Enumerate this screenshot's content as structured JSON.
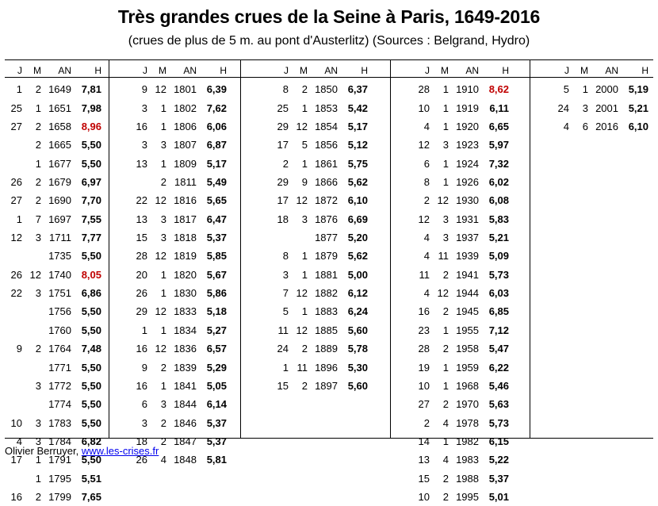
{
  "title": "Très grandes crues de la Seine à Paris, 1649-2016",
  "subtitle": "(crues de plus de 5 m. au pont d'Austerlitz) (Sources : Belgrand, Hydro)",
  "header": {
    "j": "J",
    "m": "M",
    "an": "AN",
    "h": "H"
  },
  "highlight_color": "#c00000",
  "groups": [
    [
      {
        "j": "1",
        "m": "2",
        "an": "1649",
        "h": "7,81"
      },
      {
        "j": "25",
        "m": "1",
        "an": "1651",
        "h": "7,98"
      },
      {
        "j": "27",
        "m": "2",
        "an": "1658",
        "h": "8,96",
        "red": true
      },
      {
        "j": "",
        "m": "2",
        "an": "1665",
        "h": "5,50"
      },
      {
        "j": "",
        "m": "1",
        "an": "1677",
        "h": "5,50"
      },
      {
        "j": "26",
        "m": "2",
        "an": "1679",
        "h": "6,97"
      },
      {
        "j": "27",
        "m": "2",
        "an": "1690",
        "h": "7,70"
      },
      {
        "j": "1",
        "m": "7",
        "an": "1697",
        "h": "7,55"
      },
      {
        "j": "12",
        "m": "3",
        "an": "1711",
        "h": "7,77"
      },
      {
        "j": "",
        "m": "",
        "an": "1735",
        "h": "5,50"
      },
      {
        "j": "26",
        "m": "12",
        "an": "1740",
        "h": "8,05",
        "red": true
      },
      {
        "j": "22",
        "m": "3",
        "an": "1751",
        "h": "6,86"
      },
      {
        "j": "",
        "m": "",
        "an": "1756",
        "h": "5,50"
      },
      {
        "j": "",
        "m": "",
        "an": "1760",
        "h": "5,50"
      },
      {
        "j": "9",
        "m": "2",
        "an": "1764",
        "h": "7,48"
      },
      {
        "j": "",
        "m": "",
        "an": "1771",
        "h": "5,50"
      },
      {
        "j": "",
        "m": "3",
        "an": "1772",
        "h": "5,50"
      },
      {
        "j": "",
        "m": "",
        "an": "1774",
        "h": "5,50"
      },
      {
        "j": "10",
        "m": "3",
        "an": "1783",
        "h": "5,50"
      },
      {
        "j": "4",
        "m": "3",
        "an": "1784",
        "h": "6,82"
      },
      {
        "j": "17",
        "m": "1",
        "an": "1791",
        "h": "5,50"
      },
      {
        "j": "",
        "m": "1",
        "an": "1795",
        "h": "5,51"
      },
      {
        "j": "16",
        "m": "2",
        "an": "1799",
        "h": "7,65"
      }
    ],
    [
      {
        "j": "9",
        "m": "12",
        "an": "1801",
        "h": "6,39"
      },
      {
        "j": "3",
        "m": "1",
        "an": "1802",
        "h": "7,62"
      },
      {
        "j": "16",
        "m": "1",
        "an": "1806",
        "h": "6,06"
      },
      {
        "j": "3",
        "m": "3",
        "an": "1807",
        "h": "6,87"
      },
      {
        "j": "13",
        "m": "1",
        "an": "1809",
        "h": "5,17"
      },
      {
        "j": "",
        "m": "2",
        "an": "1811",
        "h": "5,49"
      },
      {
        "j": "22",
        "m": "12",
        "an": "1816",
        "h": "5,65"
      },
      {
        "j": "13",
        "m": "3",
        "an": "1817",
        "h": "6,47"
      },
      {
        "j": "15",
        "m": "3",
        "an": "1818",
        "h": "5,37"
      },
      {
        "j": "28",
        "m": "12",
        "an": "1819",
        "h": "5,85"
      },
      {
        "j": "20",
        "m": "1",
        "an": "1820",
        "h": "5,67"
      },
      {
        "j": "26",
        "m": "1",
        "an": "1830",
        "h": "5,86"
      },
      {
        "j": "29",
        "m": "12",
        "an": "1833",
        "h": "5,18"
      },
      {
        "j": "1",
        "m": "1",
        "an": "1834",
        "h": "5,27"
      },
      {
        "j": "16",
        "m": "12",
        "an": "1836",
        "h": "6,57"
      },
      {
        "j": "9",
        "m": "2",
        "an": "1839",
        "h": "5,29"
      },
      {
        "j": "16",
        "m": "1",
        "an": "1841",
        "h": "5,05"
      },
      {
        "j": "6",
        "m": "3",
        "an": "1844",
        "h": "6,14"
      },
      {
        "j": "3",
        "m": "2",
        "an": "1846",
        "h": "5,37"
      },
      {
        "j": "18",
        "m": "2",
        "an": "1847",
        "h": "5,37"
      },
      {
        "j": "26",
        "m": "4",
        "an": "1848",
        "h": "5,81"
      }
    ],
    [
      {
        "j": "8",
        "m": "2",
        "an": "1850",
        "h": "6,37"
      },
      {
        "j": "25",
        "m": "1",
        "an": "1853",
        "h": "5,42"
      },
      {
        "j": "29",
        "m": "12",
        "an": "1854",
        "h": "5,17"
      },
      {
        "j": "17",
        "m": "5",
        "an": "1856",
        "h": "5,12"
      },
      {
        "j": "2",
        "m": "1",
        "an": "1861",
        "h": "5,75"
      },
      {
        "j": "29",
        "m": "9",
        "an": "1866",
        "h": "5,62"
      },
      {
        "j": "17",
        "m": "12",
        "an": "1872",
        "h": "6,10"
      },
      {
        "j": "18",
        "m": "3",
        "an": "1876",
        "h": "6,69"
      },
      {
        "j": "",
        "m": "",
        "an": "1877",
        "h": "5,20"
      },
      {
        "j": "8",
        "m": "1",
        "an": "1879",
        "h": "5,62"
      },
      {
        "j": "3",
        "m": "1",
        "an": "1881",
        "h": "5,00"
      },
      {
        "j": "7",
        "m": "12",
        "an": "1882",
        "h": "6,12"
      },
      {
        "j": "5",
        "m": "1",
        "an": "1883",
        "h": "6,24"
      },
      {
        "j": "11",
        "m": "12",
        "an": "1885",
        "h": "5,60"
      },
      {
        "j": "24",
        "m": "2",
        "an": "1889",
        "h": "5,78"
      },
      {
        "j": "1",
        "m": "11",
        "an": "1896",
        "h": "5,30"
      },
      {
        "j": "15",
        "m": "2",
        "an": "1897",
        "h": "5,60"
      }
    ],
    [
      {
        "j": "28",
        "m": "1",
        "an": "1910",
        "h": "8,62",
        "red": true
      },
      {
        "j": "10",
        "m": "1",
        "an": "1919",
        "h": "6,11"
      },
      {
        "j": "4",
        "m": "1",
        "an": "1920",
        "h": "6,65"
      },
      {
        "j": "12",
        "m": "3",
        "an": "1923",
        "h": "5,97"
      },
      {
        "j": "6",
        "m": "1",
        "an": "1924",
        "h": "7,32"
      },
      {
        "j": "8",
        "m": "1",
        "an": "1926",
        "h": "6,02"
      },
      {
        "j": "2",
        "m": "12",
        "an": "1930",
        "h": "6,08"
      },
      {
        "j": "12",
        "m": "3",
        "an": "1931",
        "h": "5,83"
      },
      {
        "j": "4",
        "m": "3",
        "an": "1937",
        "h": "5,21"
      },
      {
        "j": "4",
        "m": "11",
        "an": "1939",
        "h": "5,09"
      },
      {
        "j": "11",
        "m": "2",
        "an": "1941",
        "h": "5,73"
      },
      {
        "j": "4",
        "m": "12",
        "an": "1944",
        "h": "6,03"
      },
      {
        "j": "16",
        "m": "2",
        "an": "1945",
        "h": "6,85"
      },
      {
        "j": "23",
        "m": "1",
        "an": "1955",
        "h": "7,12"
      },
      {
        "j": "28",
        "m": "2",
        "an": "1958",
        "h": "5,47"
      },
      {
        "j": "19",
        "m": "1",
        "an": "1959",
        "h": "6,22"
      },
      {
        "j": "10",
        "m": "1",
        "an": "1968",
        "h": "5,46"
      },
      {
        "j": "27",
        "m": "2",
        "an": "1970",
        "h": "5,63"
      },
      {
        "j": "2",
        "m": "4",
        "an": "1978",
        "h": "5,73"
      },
      {
        "j": "14",
        "m": "1",
        "an": "1982",
        "h": "6,15"
      },
      {
        "j": "13",
        "m": "4",
        "an": "1983",
        "h": "5,22"
      },
      {
        "j": "15",
        "m": "2",
        "an": "1988",
        "h": "5,37"
      },
      {
        "j": "10",
        "m": "2",
        "an": "1995",
        "h": "5,01"
      }
    ],
    [
      {
        "j": "5",
        "m": "1",
        "an": "2000",
        "h": "5,19"
      },
      {
        "j": "24",
        "m": "3",
        "an": "2001",
        "h": "5,21"
      },
      {
        "j": "4",
        "m": "6",
        "an": "2016",
        "h": "6,10"
      }
    ]
  ],
  "footer": {
    "author": "Olivier Berruyer, ",
    "link": "www.les-crises.fr"
  }
}
